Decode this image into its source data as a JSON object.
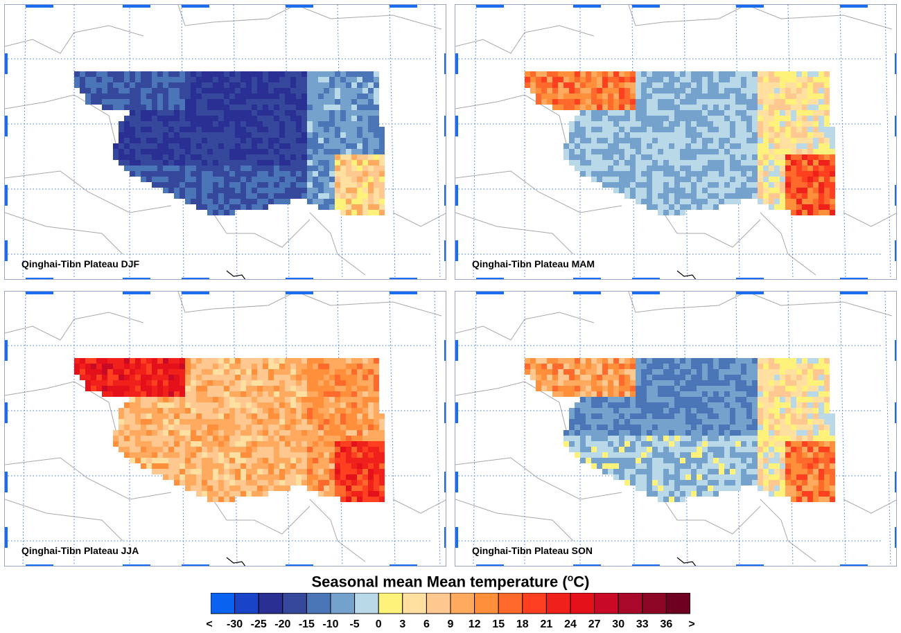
{
  "panels": [
    {
      "id": "djf",
      "label": "Qinghai-Tibn Plateau DJF"
    },
    {
      "id": "mam",
      "label": "Qinghai-Tibn Plateau MAM"
    },
    {
      "id": "jja",
      "label": "Qinghai-Tibn Plateau JJA"
    },
    {
      "id": "son",
      "label": "Qinghai-Tibn Plateau SON"
    }
  ],
  "colorbar": {
    "title_main": "Seasonal mean Mean temperature (",
    "title_sup": "o",
    "title_end": "C)",
    "ticks": [
      "<",
      "-30",
      "-25",
      "-20",
      "-15",
      "-10",
      "-5",
      "0",
      "3",
      "6",
      "9",
      "12",
      "15",
      "18",
      "21",
      "24",
      "27",
      "30",
      "33",
      "36",
      ">"
    ],
    "colors": [
      "#0a63f0",
      "#1a44c8",
      "#2a2f94",
      "#36489c",
      "#4a76b8",
      "#74a2cc",
      "#b9d8e8",
      "#fff27a",
      "#ffe0a0",
      "#ffc890",
      "#ffaa5e",
      "#ff8f3a",
      "#ff6a2c",
      "#ff4020",
      "#f0201a",
      "#e4101a",
      "#c80a26",
      "#a8082a",
      "#8e0626",
      "#6e0020"
    ]
  },
  "map_data": {
    "seasons": {
      "djf": {
        "north_west": -15,
        "north": -20,
        "east": -5,
        "southeast": 6
      },
      "mam": {
        "north_west": 15,
        "center": -5,
        "east": 3,
        "southeast": 18
      },
      "jja": {
        "north_west": 24,
        "center": 9,
        "east": 12,
        "southeast": 21
      },
      "son": {
        "north_west": 12,
        "center": -10,
        "east": 3,
        "southeast": 15
      }
    }
  }
}
